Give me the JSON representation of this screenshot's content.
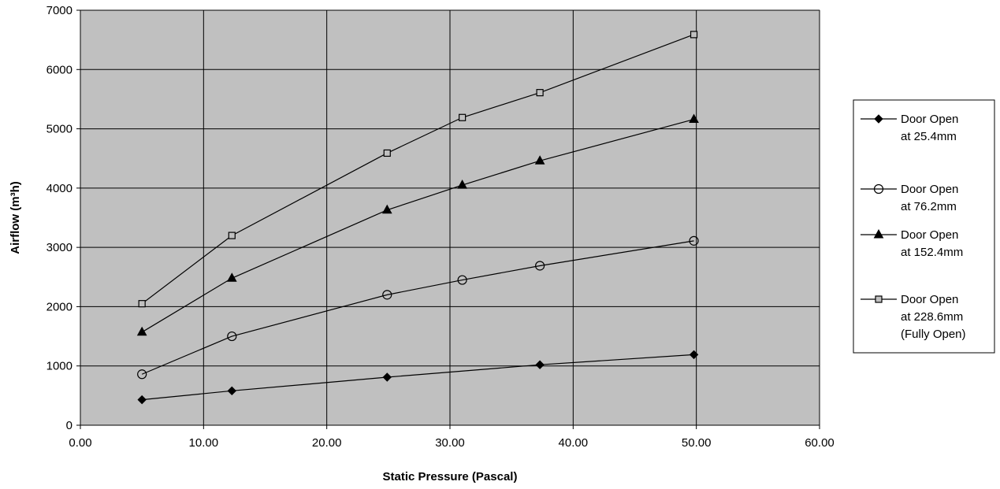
{
  "chart_data": {
    "type": "line",
    "title": "",
    "xlabel": "Static Pressure (Pascal)",
    "ylabel": "Airflow (m³h)",
    "xlim": [
      0,
      60
    ],
    "ylim": [
      0,
      7000
    ],
    "x_ticks": [
      "0.00",
      "10.00",
      "20.00",
      "30.00",
      "40.00",
      "50.00",
      "60.00"
    ],
    "y_ticks": [
      "0",
      "1000",
      "2000",
      "3000",
      "4000",
      "5000",
      "6000",
      "7000"
    ],
    "grid": true,
    "legend_position": "right",
    "background_color": "#c0c0c0",
    "series": [
      {
        "name_lines": [
          "Door Open",
          "at 25.4mm"
        ],
        "marker": "diamond",
        "points": [
          [
            5,
            430
          ],
          [
            12.3,
            580
          ],
          [
            24.9,
            810
          ],
          [
            37.3,
            1020
          ],
          [
            49.8,
            1190
          ]
        ]
      },
      {
        "name_lines": [
          "Door Open",
          "at 76.2mm"
        ],
        "marker": "circle",
        "points": [
          [
            5,
            860
          ],
          [
            12.3,
            1500
          ],
          [
            24.9,
            2200
          ],
          [
            31,
            2450
          ],
          [
            37.3,
            2690
          ],
          [
            49.8,
            3110
          ]
        ]
      },
      {
        "name_lines": [
          "Door Open",
          "at 152.4mm"
        ],
        "marker": "triangle",
        "points": [
          [
            5,
            1570
          ],
          [
            12.3,
            2480
          ],
          [
            24.9,
            3630
          ],
          [
            31,
            4050
          ],
          [
            37.3,
            4460
          ],
          [
            49.8,
            5160
          ]
        ]
      },
      {
        "name_lines": [
          "Door Open",
          "at 228.6mm",
          "(Fully Open)"
        ],
        "marker": "square",
        "points": [
          [
            5,
            2050
          ],
          [
            12.3,
            3200
          ],
          [
            24.9,
            4590
          ],
          [
            31,
            5190
          ],
          [
            37.3,
            5610
          ],
          [
            49.8,
            6590
          ]
        ]
      }
    ]
  }
}
